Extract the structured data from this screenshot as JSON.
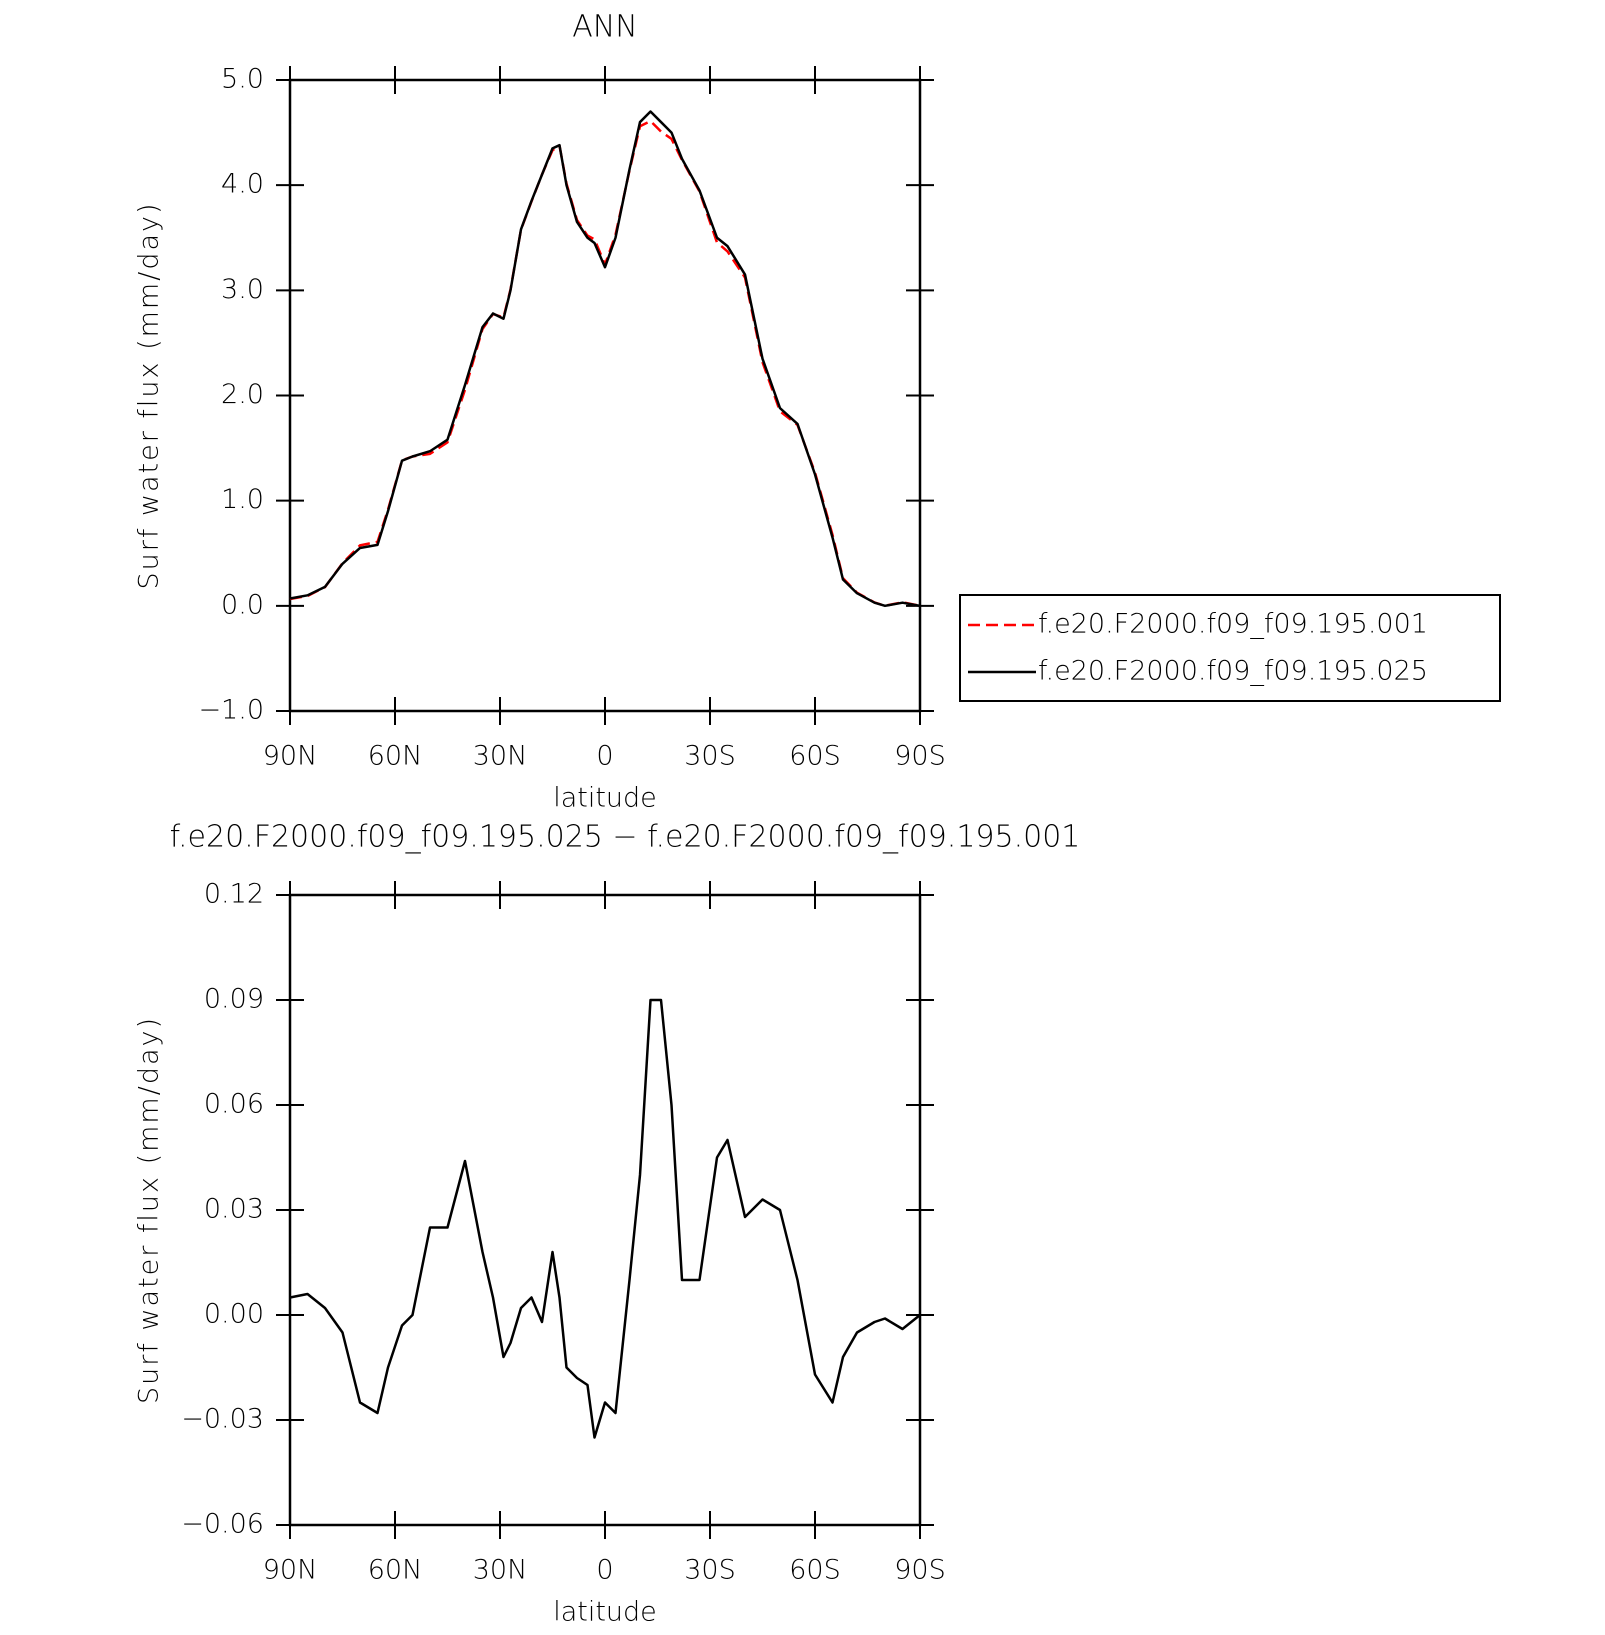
{
  "chart_data": [
    {
      "type": "line",
      "title": "ANN",
      "xlabel": "latitude",
      "ylabel": "Surf water flux (mm/day)",
      "x": [
        90,
        85,
        80,
        75,
        70,
        65,
        62,
        58,
        55,
        50,
        45,
        40,
        35,
        32,
        29,
        27,
        24,
        21,
        18,
        15,
        13,
        11,
        8,
        5,
        3,
        0,
        -3,
        -7,
        -10,
        -13,
        -16,
        -19,
        -22,
        -27,
        -32,
        -35,
        -40,
        -45,
        -50,
        -55,
        -60,
        -65,
        -68,
        -72,
        -77,
        -80,
        -85,
        -90
      ],
      "series": [
        {
          "name": "f.e20.F2000.f09_f09.195.001",
          "color": "#ff0000",
          "dash": true,
          "values": [
            0.065,
            0.094,
            0.178,
            0.405,
            0.575,
            0.608,
            0.915,
            1.383,
            1.42,
            1.445,
            1.555,
            2.056,
            2.632,
            2.775,
            2.742,
            3.008,
            3.578,
            3.845,
            4.102,
            4.332,
            4.375,
            4.015,
            3.668,
            3.52,
            3.485,
            3.245,
            3.528,
            4.14,
            4.56,
            4.61,
            4.51,
            4.44,
            4.24,
            3.94,
            3.455,
            3.37,
            3.122,
            2.317,
            1.85,
            1.72,
            1.267,
            0.675,
            0.262,
            0.125,
            0.032,
            0.001,
            0.034,
            0.0
          ]
        },
        {
          "name": "f.e20.F2000.f09_f09.195.025",
          "color": "#000000",
          "dash": false,
          "values": [
            0.07,
            0.1,
            0.18,
            0.4,
            0.55,
            0.58,
            0.9,
            1.38,
            1.42,
            1.47,
            1.58,
            2.1,
            2.65,
            2.78,
            2.73,
            3.0,
            3.58,
            3.85,
            4.1,
            4.35,
            4.38,
            4.0,
            3.65,
            3.5,
            3.45,
            3.22,
            3.5,
            4.15,
            4.6,
            4.7,
            4.6,
            4.5,
            4.25,
            3.95,
            3.5,
            3.42,
            3.15,
            2.35,
            1.88,
            1.73,
            1.25,
            0.65,
            0.25,
            0.12,
            0.03,
            0.0,
            0.03,
            0.0
          ]
        }
      ],
      "xlim": [
        90,
        -90
      ],
      "xticks": [
        {
          "value": 90,
          "label": "90N"
        },
        {
          "value": 60,
          "label": "60N"
        },
        {
          "value": 30,
          "label": "30N"
        },
        0,
        {
          "value": -30,
          "label": "30S"
        },
        {
          "value": -60,
          "label": "60S"
        },
        {
          "value": -90,
          "label": "90S"
        }
      ],
      "ylim": [
        -1,
        5
      ],
      "yticks": [
        {
          "value": -1,
          "label": "−1.0"
        },
        {
          "value": 0,
          "label": "0.0"
        },
        {
          "value": 1,
          "label": "1.0"
        },
        {
          "value": 2,
          "label": "2.0"
        },
        {
          "value": 3,
          "label": "3.0"
        },
        {
          "value": 4,
          "label": "4.0"
        },
        {
          "value": 5,
          "label": "5.0"
        }
      ],
      "legend": "right"
    },
    {
      "type": "line",
      "title": "f.e20.F2000.f09_f09.195.025 − f.e20.F2000.f09_f09.195.001",
      "xlabel": "latitude",
      "ylabel": "Surf water flux (mm/day)",
      "x": [
        90,
        85,
        80,
        75,
        70,
        65,
        62,
        58,
        55,
        50,
        45,
        40,
        35,
        32,
        29,
        27,
        24,
        21,
        18,
        15,
        13,
        11,
        8,
        5,
        3,
        0,
        -3,
        -7,
        -10,
        -13,
        -16,
        -19,
        -22,
        -27,
        -32,
        -35,
        -40,
        -45,
        -50,
        -55,
        -60,
        -65,
        -68,
        -72,
        -77,
        -80,
        -85,
        -90
      ],
      "series": [
        {
          "color": "#000000",
          "dash": false,
          "values": [
            0.005,
            0.006,
            0.002,
            -0.005,
            -0.025,
            -0.028,
            -0.015,
            -0.003,
            0.0,
            0.025,
            0.025,
            0.044,
            0.018,
            0.005,
            -0.012,
            -0.008,
            0.002,
            0.005,
            -0.002,
            0.018,
            0.005,
            -0.015,
            -0.018,
            -0.02,
            -0.035,
            -0.025,
            -0.028,
            0.01,
            0.04,
            0.09,
            0.09,
            0.06,
            0.01,
            0.01,
            0.045,
            0.05,
            0.028,
            0.033,
            0.03,
            0.01,
            -0.017,
            -0.025,
            -0.012,
            -0.005,
            -0.002,
            -0.001,
            -0.004,
            0.0
          ]
        }
      ],
      "xlim": [
        90,
        -90
      ],
      "xticks": [
        {
          "value": 90,
          "label": "90N"
        },
        {
          "value": 60,
          "label": "60N"
        },
        {
          "value": 30,
          "label": "30N"
        },
        0,
        {
          "value": -30,
          "label": "30S"
        },
        {
          "value": -60,
          "label": "60S"
        },
        {
          "value": -90,
          "label": "90S"
        }
      ],
      "ylim": [
        -0.06,
        0.12
      ],
      "yticks": [
        {
          "value": -0.06,
          "label": "−0.06"
        },
        {
          "value": -0.03,
          "label": "−0.03"
        },
        {
          "value": 0,
          "label": "0.00"
        },
        0.03,
        0.06,
        0.09,
        0.12
      ]
    }
  ]
}
